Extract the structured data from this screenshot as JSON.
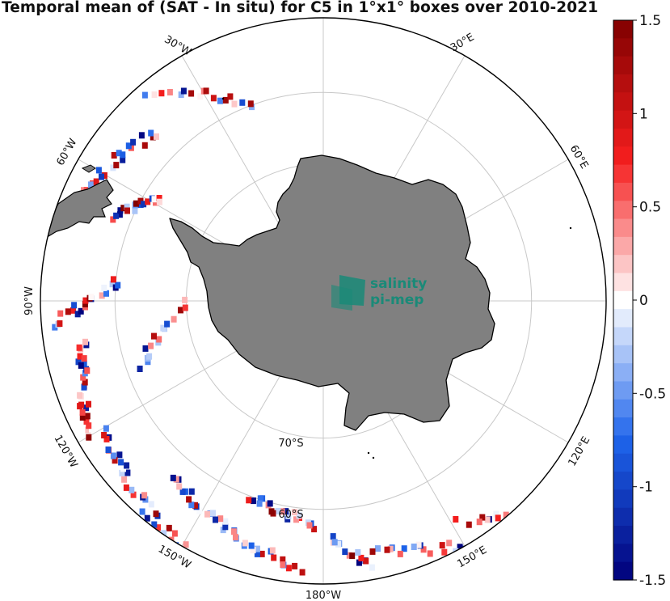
{
  "title": "Temporal mean of (SAT - In situ) for C5 in 1°x1° boxes over 2010-2021",
  "logo": {
    "line1": "salinity",
    "line2": "pi-mep",
    "color": "#1a8a78"
  },
  "map": {
    "projection": "south-polar-stereographic",
    "outer_latitude": -50,
    "land_color": "#808080",
    "coast_color": "#000000",
    "grid_color": "#c8c8c8",
    "longitude_labels": [
      "30°E",
      "60°E",
      "120°E",
      "150°E",
      "180°W",
      "150°W",
      "120°W",
      "90°W",
      "60°W",
      "30°W"
    ],
    "latitude_labels": [
      "70°S",
      "60°S"
    ]
  },
  "colorbar": {
    "min": -1.5,
    "max": 1.5,
    "ticks": [
      "1.5",
      "1",
      "0.5",
      "0",
      "-0.5",
      "-1",
      "-1.5"
    ],
    "colormap": "blue-white-red",
    "colors": {
      "low": "#00007a",
      "mid": "#ffffff",
      "high": "#800000"
    }
  }
}
